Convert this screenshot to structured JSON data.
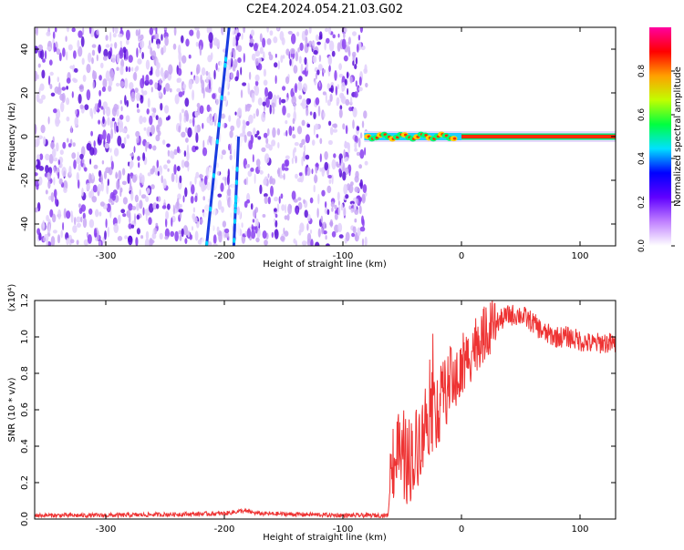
{
  "title": "C2E4.2024.054.21.03.G02",
  "colorbar": {
    "label": "Normalized spectral amplitude",
    "ticks": [
      "0.0",
      "0.2",
      "0.4",
      "0.6",
      "0.8"
    ],
    "tick_values": [
      0.0,
      0.2,
      0.4,
      0.6,
      0.8
    ],
    "range": [
      0,
      1
    ]
  },
  "colors": {
    "spectro_low": "#c9a8f5",
    "spectro_mid": "#8a3ff0",
    "spectro_high": "#5a10d8",
    "snr_line": "#ee3333",
    "colorbar_stops": [
      "#ffffff",
      "#c080ff",
      "#6000ff",
      "#0000ff",
      "#00e0ff",
      "#00ff40",
      "#c0ff00",
      "#ffa000",
      "#ff0000",
      "#ff00a0"
    ]
  },
  "chart_data": [
    {
      "type": "heatmap",
      "xlabel": "Height of straight line (km)",
      "ylabel": "Frequency (Hz)",
      "xlim": [
        -360,
        130
      ],
      "ylim": [
        -50,
        50
      ],
      "xticks": [
        -300,
        -200,
        -100,
        0,
        100
      ],
      "xtick_labels": [
        "-300",
        "-200",
        "-100",
        "0",
        "100"
      ],
      "yticks": [
        -40,
        -20,
        0,
        20,
        40
      ],
      "ytick_labels": [
        "-40",
        "-20",
        "0",
        "20",
        "40"
      ],
      "noise_region": [
        -360,
        -80
      ],
      "interference_lines": [
        {
          "x_start": -196,
          "y_start": 50,
          "x_end": -215,
          "y_end": -50
        },
        {
          "x_start": -188,
          "y_start": 0,
          "x_end": -192,
          "y_end": -50
        }
      ],
      "tone_segment": {
        "x_start": -82,
        "x_end": 130,
        "freq": 0
      }
    },
    {
      "type": "line",
      "xlabel": "Height of straight line (km)",
      "ylabel": "SNR (10 * v/v)",
      "yscale_label": "(x10⁴)",
      "xlim": [
        -360,
        130
      ],
      "ylim": [
        0,
        1.2
      ],
      "xticks": [
        -300,
        -200,
        -100,
        0,
        100
      ],
      "xtick_labels": [
        "-300",
        "-200",
        "-100",
        "0",
        "100"
      ],
      "yticks": [
        0.0,
        0.2,
        0.4,
        0.6,
        0.8,
        1.0,
        1.2
      ],
      "ytick_labels": [
        "0.0",
        "0.2",
        "0.4",
        "0.6",
        "0.8",
        "1.0",
        "1.2"
      ],
      "series": [
        {
          "x": [
            -360,
            -300,
            -250,
            -200,
            -185,
            -170,
            -130,
            -100,
            -62,
            -58,
            -50,
            -40,
            -30,
            -20,
            -10,
            0,
            10,
            20,
            30,
            40,
            50,
            60,
            70,
            80,
            90,
            100,
            110,
            120,
            130
          ],
          "y": [
            0.02,
            0.02,
            0.025,
            0.03,
            0.045,
            0.03,
            0.025,
            0.02,
            0.02,
            0.35,
            0.3,
            0.35,
            0.55,
            0.6,
            0.75,
            0.8,
            0.95,
            1.02,
            1.08,
            1.12,
            1.12,
            1.08,
            1.02,
            1.0,
            1.0,
            0.98,
            0.96,
            0.97,
            0.96
          ]
        }
      ]
    }
  ]
}
